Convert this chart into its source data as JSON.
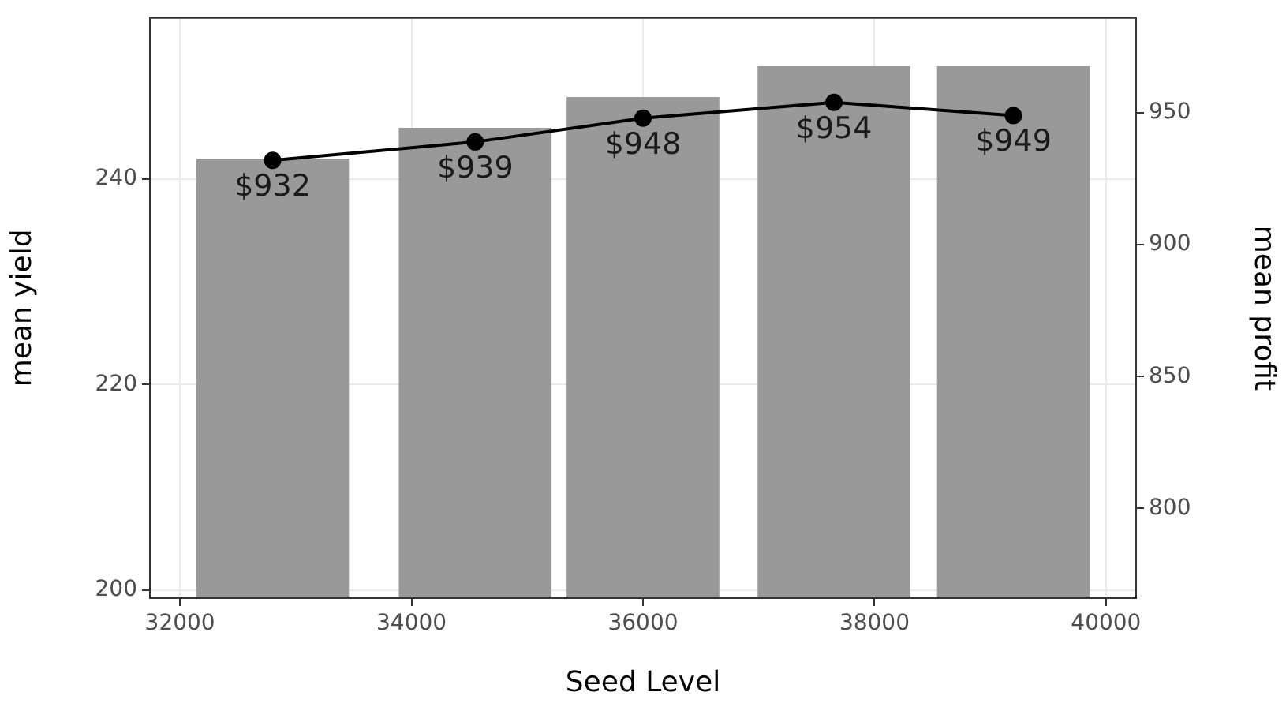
{
  "chart_data": {
    "type": "bar",
    "xlabel": "Seed Level",
    "ylabel": "mean yield",
    "y2label": "mean profit",
    "x": [
      32800,
      34550,
      36000,
      37650,
      39200
    ],
    "series": [
      {
        "color": "#999999",
        "values": [
          242,
          245,
          248,
          251,
          251
        ]
      },
      {
        "type": "line",
        "axis": "y2",
        "color": "#000000",
        "values": [
          932,
          939,
          948,
          954,
          949
        ],
        "value_labels": [
          "$932",
          "$939",
          "$948",
          "$954",
          "$949"
        ]
      }
    ],
    "xlim": [
      31740,
      40260
    ],
    "xticks": [
      32000,
      34000,
      36000,
      38000,
      40000
    ],
    "ylim": [
      199.2,
      255.7
    ],
    "yticks": [
      200,
      220,
      240
    ],
    "y2lim": [
      766,
      986
    ],
    "y2ticks": [
      800,
      850,
      900,
      950
    ],
    "grid": true,
    "legend": false,
    "marker": "circle",
    "line_style": "solid"
  }
}
